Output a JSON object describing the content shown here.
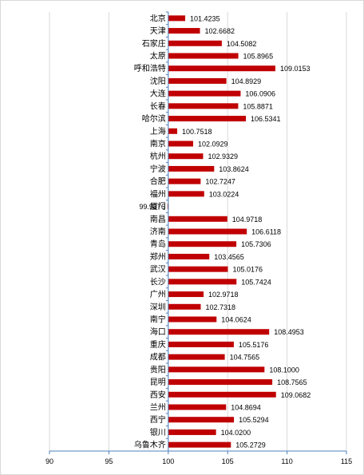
{
  "chart_data": {
    "type": "bar",
    "orientation": "horizontal",
    "categories": [
      "北京",
      "天津",
      "石家庄",
      "太原",
      "呼和浩特",
      "沈阳",
      "大连",
      "长春",
      "哈尔滨",
      "上海",
      "南京",
      "杭州",
      "宁波",
      "合肥",
      "福州",
      "厦门",
      "南昌",
      "济南",
      "青岛",
      "郑州",
      "武汉",
      "长沙",
      "广州",
      "深圳",
      "南宁",
      "海口",
      "重庆",
      "成都",
      "贵阳",
      "昆明",
      "西安",
      "兰州",
      "西宁",
      "银川",
      "乌鲁木齐"
    ],
    "values": [
      101.4235,
      102.6682,
      104.5082,
      105.8965,
      109.0153,
      104.8929,
      106.0906,
      105.8871,
      106.5341,
      100.7518,
      102.0929,
      102.9329,
      103.8624,
      102.7247,
      103.0224,
      99.9376,
      104.9718,
      106.6118,
      105.7306,
      103.4565,
      105.0176,
      105.7424,
      102.9718,
      102.7318,
      104.0624,
      108.4953,
      105.5176,
      104.7565,
      108.1,
      108.7565,
      109.0682,
      104.8694,
      105.5294,
      104.02,
      105.2729
    ],
    "value_labels": [
      "101.4235",
      "102.6682",
      "104.5082",
      "105.8965",
      "109.0153",
      "104.8929",
      "106.0906",
      "105.8871",
      "106.5341",
      "100.7518",
      "102.0929",
      "102.9329",
      "103.8624",
      "102.7247",
      "103.0224",
      "99.9376",
      "104.9718",
      "106.6118",
      "105.7306",
      "103.4565",
      "105.0176",
      "105.7424",
      "102.9718",
      "102.7318",
      "104.0624",
      "108.4953",
      "105.5176",
      "104.7565",
      "108.1000",
      "108.7565",
      "109.0682",
      "104.8694",
      "105.5294",
      "104.0200",
      "105.2729"
    ],
    "base_value": 100,
    "xlim": [
      90,
      115
    ],
    "xticks": [
      "90",
      "95",
      "100",
      "105",
      "110",
      "115"
    ],
    "grid": true,
    "bar_color": "#c00000",
    "axis_color": "#4f81bd",
    "grid_color": "#d9d9d9"
  }
}
